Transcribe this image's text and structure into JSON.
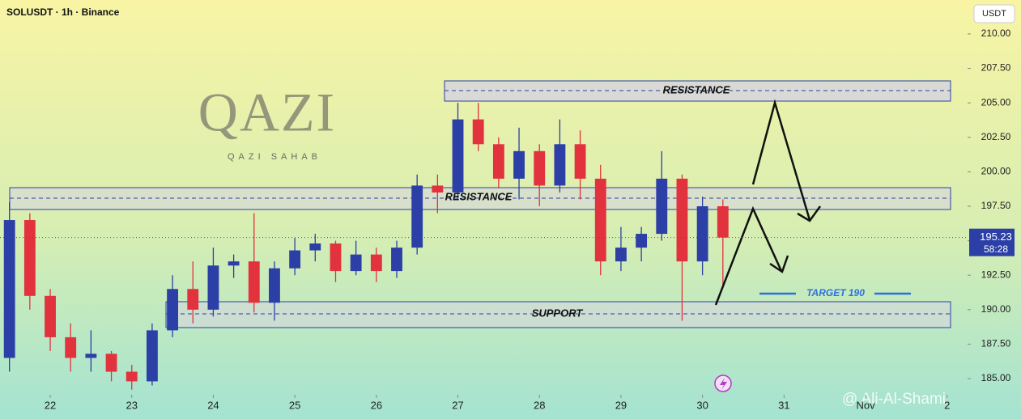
{
  "header": "SOLUSDT · 1h · Binance",
  "currency_button": "USDT",
  "logo": {
    "title": "QAZI",
    "subtitle": "QAZI SAHAB"
  },
  "watermark": "@ Ali-Al-Shami",
  "annotations": {
    "resistance_top": "RESISTANCE",
    "resistance_mid": "RESISTANCE",
    "support": "SUPPORT",
    "target": "TARGET 190"
  },
  "chart_data": {
    "type": "candlestick",
    "x": [
      21.5,
      21.75,
      22,
      22.25,
      22.5,
      22.75,
      23,
      23.25,
      23.5,
      23.75,
      24,
      24.25,
      24.5,
      24.75,
      25,
      25.25,
      25.5,
      25.75,
      26,
      26.25,
      26.5,
      26.75,
      27,
      27.25,
      27.5,
      27.75,
      28,
      28.25,
      28.5,
      28.75,
      29,
      29.25,
      29.5,
      29.75,
      30,
      30.25
    ],
    "open": [
      186.5,
      196.5,
      191,
      188,
      186.5,
      186.8,
      185.5,
      184.8,
      188.5,
      191.5,
      190,
      193.2,
      193.5,
      190.5,
      193,
      194.3,
      194.8,
      192.8,
      194,
      192.8,
      194.5,
      199,
      198.5,
      203.8,
      202,
      199.5,
      201.5,
      199,
      202,
      199.5,
      193.5,
      194.5,
      195.5,
      199.5,
      193.5,
      197.5
    ],
    "high": [
      197.8,
      197,
      191.5,
      189,
      188.5,
      187,
      186,
      189,
      192.5,
      193.5,
      194.5,
      194,
      197,
      193.5,
      195.2,
      195.5,
      195,
      195,
      194.5,
      195,
      199.8,
      199.8,
      205,
      205,
      202.5,
      203.2,
      202,
      203.8,
      203,
      200.5,
      196,
      196,
      201.5,
      199.8,
      198.2,
      198
    ],
    "low": [
      185.5,
      190,
      187,
      185.5,
      185.5,
      184.8,
      184.2,
      184.5,
      188,
      189,
      189.5,
      192.3,
      189.8,
      189.2,
      192.5,
      193.5,
      192,
      192.5,
      192,
      192.3,
      194,
      197,
      198,
      201.5,
      198.8,
      198,
      197.5,
      198.5,
      198,
      192.5,
      192.8,
      193.5,
      195,
      189.2,
      192.5,
      191.8
    ],
    "close": [
      196.5,
      191,
      188,
      186.5,
      186.8,
      185.5,
      184.8,
      188.5,
      191.5,
      190,
      193.2,
      193.5,
      190.5,
      193,
      194.3,
      194.8,
      192.8,
      194,
      192.8,
      194.5,
      199,
      198.5,
      203.8,
      202,
      199.5,
      201.5,
      199,
      202,
      199.5,
      193.5,
      194.5,
      195.5,
      199.5,
      193.5,
      197.5,
      195.23
    ],
    "up_color": "#2b3fa6",
    "down_color": "#e1323d",
    "countdown": "58:28",
    "xlim": [
      21.384,
      33.251
    ],
    "xticks": [
      22,
      23,
      24,
      25,
      26,
      27,
      28,
      29,
      30,
      31,
      {
        "value": 32,
        "label": "Nov"
      },
      {
        "value": 33,
        "label": "2"
      }
    ],
    "ylim": [
      183.83,
      212.46
    ],
    "yticks": [
      {
        "value": 185,
        "label": "185.00"
      },
      {
        "value": 187.5,
        "label": "187.50"
      },
      {
        "value": 190,
        "label": "190.00"
      },
      {
        "value": 192.5,
        "label": "192.50"
      },
      {
        "value": 195,
        "label": "195.00"
      },
      {
        "value": 197.5,
        "label": "197.50"
      },
      {
        "value": 200,
        "label": "200.00"
      },
      {
        "value": 202.5,
        "label": "202.50"
      },
      {
        "value": 205,
        "label": "205.00"
      },
      {
        "value": 207.5,
        "label": "207.50"
      },
      {
        "value": 210,
        "label": "210.00"
      }
    ]
  }
}
